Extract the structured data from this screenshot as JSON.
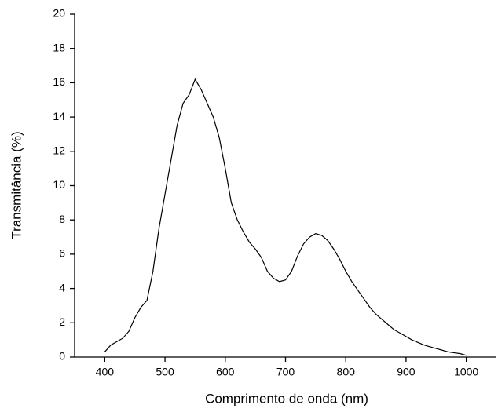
{
  "chart_data": {
    "type": "line",
    "xlabel": "Comprimento de onda (nm)",
    "ylabel": "Transmitância (%)",
    "x": [
      400,
      410,
      420,
      430,
      440,
      450,
      460,
      470,
      480,
      490,
      500,
      510,
      520,
      530,
      540,
      550,
      560,
      570,
      580,
      590,
      600,
      610,
      620,
      630,
      640,
      650,
      660,
      670,
      680,
      690,
      700,
      710,
      720,
      730,
      740,
      750,
      760,
      770,
      780,
      790,
      800,
      810,
      820,
      830,
      840,
      850,
      860,
      870,
      880,
      890,
      900,
      910,
      920,
      930,
      940,
      950,
      960,
      970,
      980,
      990,
      1000
    ],
    "series": [
      {
        "color": "#000000",
        "values": [
          0.3,
          0.7,
          0.9,
          1.1,
          1.5,
          2.3,
          2.9,
          3.3,
          5.0,
          7.5,
          9.5,
          11.5,
          13.5,
          14.8,
          15.3,
          16.2,
          15.6,
          14.8,
          14.0,
          12.8,
          11.0,
          9.0,
          8.0,
          7.3,
          6.7,
          6.3,
          5.8,
          5.0,
          4.6,
          4.4,
          4.5,
          5.0,
          5.9,
          6.6,
          7.0,
          7.2,
          7.1,
          6.8,
          6.3,
          5.7,
          5.0,
          4.4,
          3.9,
          3.4,
          2.9,
          2.5,
          2.2,
          1.9,
          1.6,
          1.4,
          1.2,
          1.0,
          0.85,
          0.7,
          0.6,
          0.5,
          0.4,
          0.3,
          0.25,
          0.2,
          0.1
        ]
      }
    ],
    "xlim": [
      350,
      1050
    ],
    "xticks": [
      400,
      500,
      600,
      700,
      800,
      900,
      1000
    ],
    "ylim": [
      0,
      20
    ],
    "yticks": [
      0,
      2,
      4,
      6,
      8,
      10,
      12,
      14,
      16,
      18,
      20
    ]
  }
}
